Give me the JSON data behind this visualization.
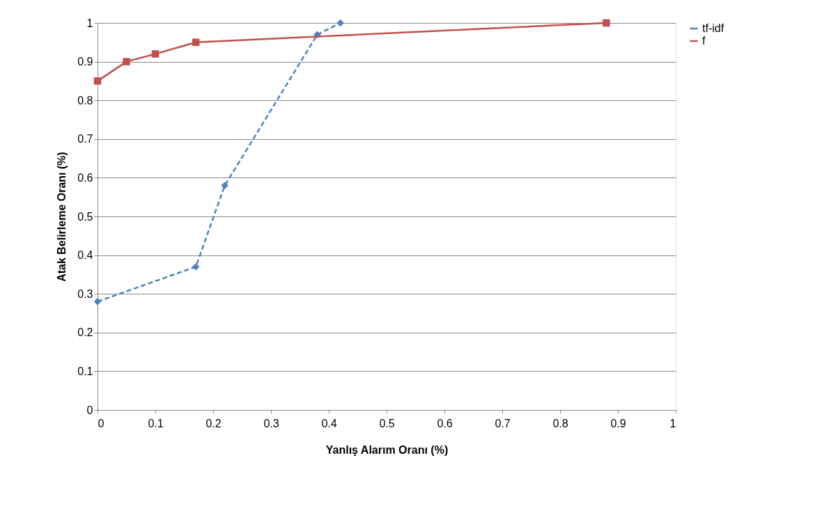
{
  "chart_data": {
    "type": "line",
    "xlabel": "Yanlış Alarım Oranı (%)",
    "ylabel": "Atak Belirleme Oranı (%)",
    "xlim": [
      0,
      1
    ],
    "xticks": [
      0,
      0.1,
      0.2,
      0.3,
      0.4,
      0.5,
      0.6,
      0.7,
      0.8,
      0.9,
      1
    ],
    "ylim": [
      0,
      1
    ],
    "yticks": [
      0,
      0.1,
      0.2,
      0.3,
      0.4,
      0.5,
      0.6,
      0.7,
      0.8,
      0.9,
      1
    ],
    "grid": "y",
    "legend": "right",
    "series": [
      {
        "name": "tf-idf",
        "color": "#4f81bd",
        "marker": "diamond",
        "line_style": "dashed",
        "x": [
          0,
          0.17,
          0.22,
          0.38,
          0.42
        ],
        "values": [
          0.28,
          0.37,
          0.58,
          0.97,
          1.0
        ]
      },
      {
        "name": "f",
        "color": "#c0504d",
        "marker": "square",
        "line_style": "solid",
        "x": [
          0,
          0.05,
          0.1,
          0.17,
          0.88
        ],
        "values": [
          0.85,
          0.9,
          0.92,
          0.95,
          1.0
        ]
      }
    ]
  }
}
